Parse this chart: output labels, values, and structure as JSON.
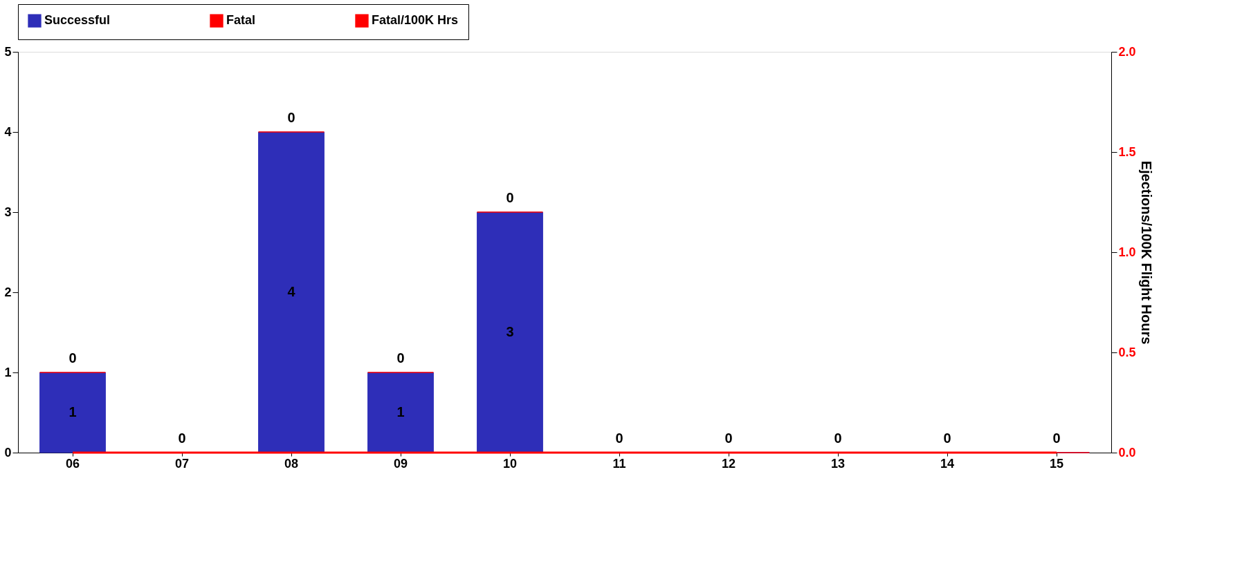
{
  "chart_data": {
    "type": "bar",
    "stacked": true,
    "categories": [
      "06",
      "07",
      "08",
      "09",
      "10",
      "11",
      "12",
      "13",
      "14",
      "15"
    ],
    "series": [
      {
        "name": "Successful",
        "color": "#2e2eb8",
        "values": [
          1,
          0,
          4,
          1,
          3,
          0,
          0,
          0,
          0,
          0
        ],
        "value_labels": [
          "1",
          null,
          "4",
          "1",
          "3",
          null,
          null,
          null,
          null,
          null
        ]
      },
      {
        "name": "Fatal",
        "color": "#ff0000",
        "values": [
          0,
          0,
          0,
          0,
          0,
          0,
          0,
          0,
          0,
          0
        ],
        "value_labels": [
          "0",
          "0",
          "0",
          "0",
          "0",
          "0",
          "0",
          "0",
          "0",
          "0"
        ]
      },
      {
        "name": "Fatal/100K Hrs",
        "type": "line",
        "axis": "y2",
        "color": "#ff0000",
        "values": [
          0,
          0,
          0,
          0,
          0,
          0,
          0,
          0,
          0,
          0
        ]
      }
    ],
    "ylim": [
      0,
      5
    ],
    "yticks": [
      0,
      1,
      2,
      3,
      4,
      5
    ],
    "y2lim": [
      0,
      2
    ],
    "y2ticks": [
      {
        "value": 0,
        "label": "0.0"
      },
      {
        "value": 0.5,
        "label": "0.5"
      },
      {
        "value": 1,
        "label": "1.0"
      },
      {
        "value": 1.5,
        "label": "1.5"
      },
      {
        "value": 2,
        "label": "2.0"
      }
    ],
    "y2label": "Ejections/100K Flight Hours",
    "legend": "top",
    "grid": false
  }
}
